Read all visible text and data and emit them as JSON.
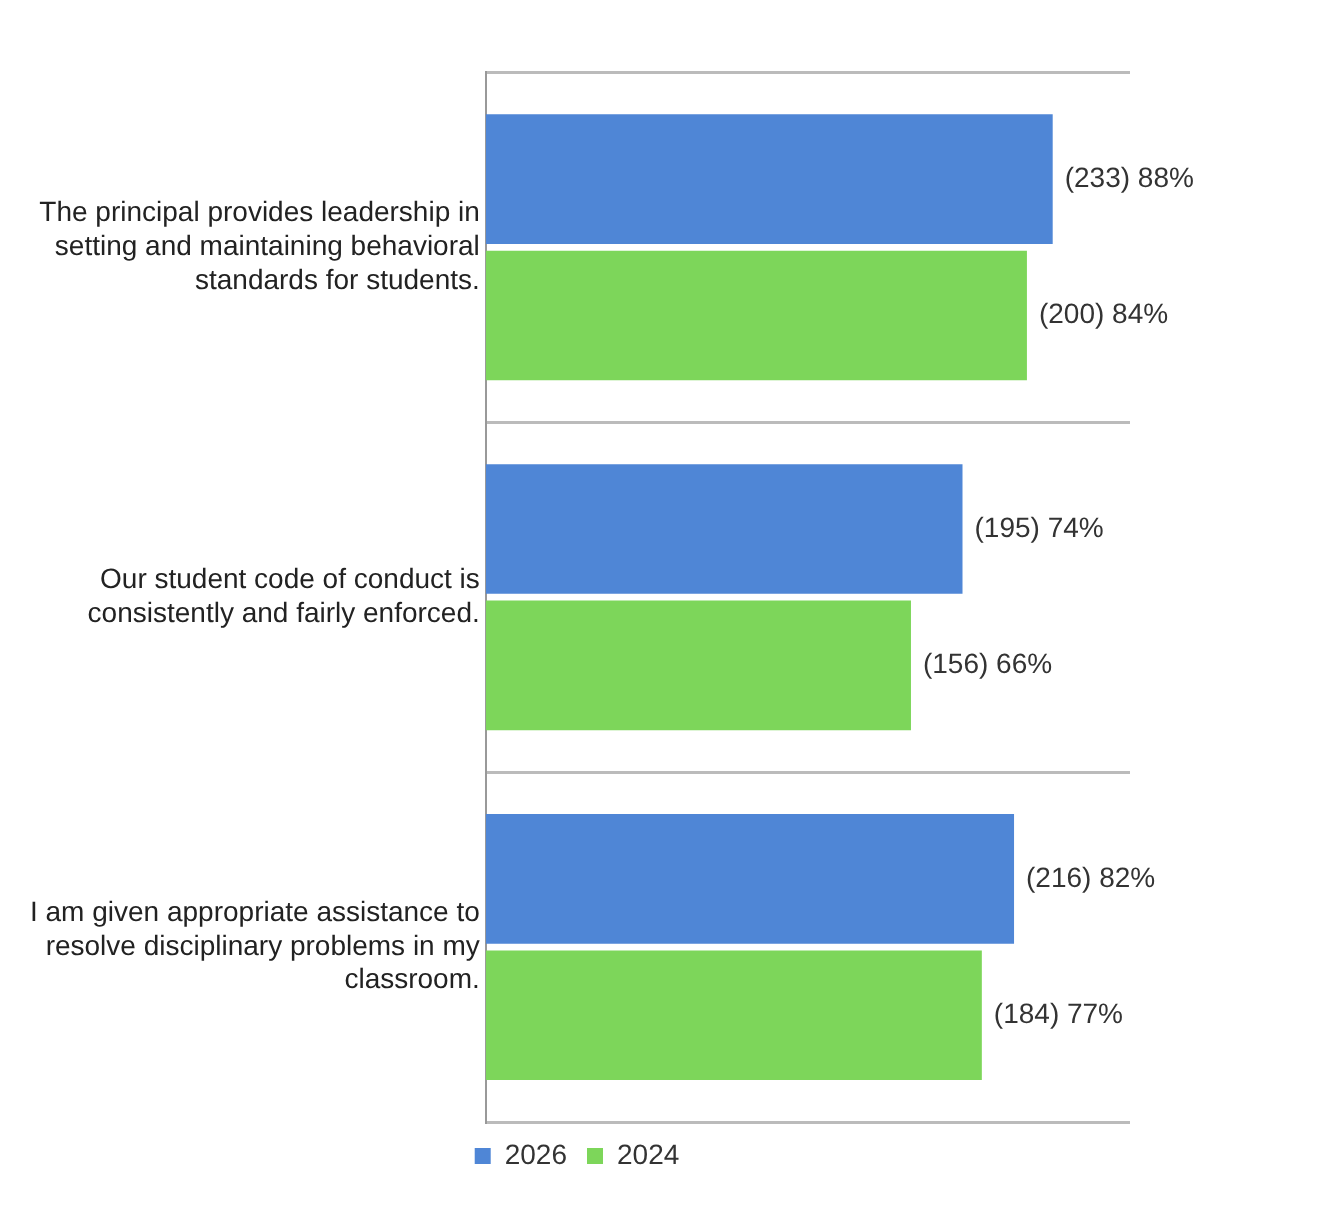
{
  "chart_data": {
    "type": "bar",
    "orientation": "horizontal",
    "categories": [
      "The principal provides leadership in setting and maintaining behavioral standards for students.",
      "Our student code of conduct is consistently and fairly enforced.",
      "I am given appropriate assistance to resolve disciplinary problems in my classroom."
    ],
    "series": [
      {
        "name": "2026",
        "color": "#4f86d6",
        "values": [
          88,
          74,
          82
        ],
        "value_labels": [
          "(233) 88%",
          "(195) 74%",
          "(216) 82%"
        ]
      },
      {
        "name": "2024",
        "color": "#7dd65a",
        "values": [
          84,
          66,
          77
        ],
        "value_labels": [
          "(200) 84%",
          "(156) 66%",
          "(184) 77%"
        ]
      }
    ],
    "grid": "y",
    "legend": "bottom"
  }
}
